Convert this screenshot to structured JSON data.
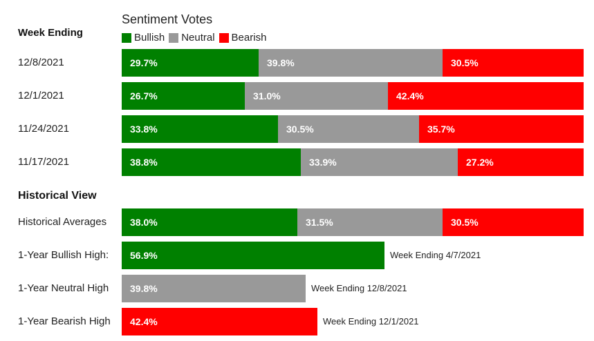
{
  "chart_data": {
    "type": "bar",
    "orientation": "horizontal-stacked",
    "title": "Sentiment Votes",
    "legend": [
      {
        "name": "Bullish",
        "color": "#008000"
      },
      {
        "name": "Neutral",
        "color": "#999999"
      },
      {
        "name": "Bearish",
        "color": "#ff0000"
      }
    ],
    "weekly_header": "Week Ending",
    "weekly": [
      {
        "label": "12/8/2021",
        "values": [
          29.7,
          39.8,
          30.5
        ],
        "texts": [
          "29.7%",
          "39.8%",
          "30.5%"
        ]
      },
      {
        "label": "12/1/2021",
        "values": [
          26.7,
          31.0,
          42.4
        ],
        "texts": [
          "26.7%",
          "31.0%",
          "42.4%"
        ]
      },
      {
        "label": "11/24/2021",
        "values": [
          33.8,
          30.5,
          35.7
        ],
        "texts": [
          "33.8%",
          "30.5%",
          "35.7%"
        ]
      },
      {
        "label": "11/17/2021",
        "values": [
          38.8,
          33.9,
          27.2
        ],
        "texts": [
          "38.8%",
          "33.9%",
          "27.2%"
        ]
      }
    ],
    "historical_header": "Historical View",
    "historical": [
      {
        "label": "Historical Averages",
        "values": [
          38.0,
          31.5,
          30.5
        ],
        "texts": [
          "38.0%",
          "31.5%",
          "30.5%"
        ],
        "note": ""
      },
      {
        "label": "1-Year Bullish High:",
        "series": 0,
        "values": [
          56.9
        ],
        "texts": [
          "56.9%"
        ],
        "note": "Week Ending 4/7/2021"
      },
      {
        "label": "1-Year Neutral High",
        "series": 1,
        "values": [
          39.8
        ],
        "texts": [
          "39.8%"
        ],
        "note": "Week Ending 12/8/2021"
      },
      {
        "label": "1-Year Bearish High",
        "series": 2,
        "values": [
          42.4
        ],
        "texts": [
          "42.4%"
        ],
        "note": "Week Ending 12/1/2021"
      }
    ]
  }
}
